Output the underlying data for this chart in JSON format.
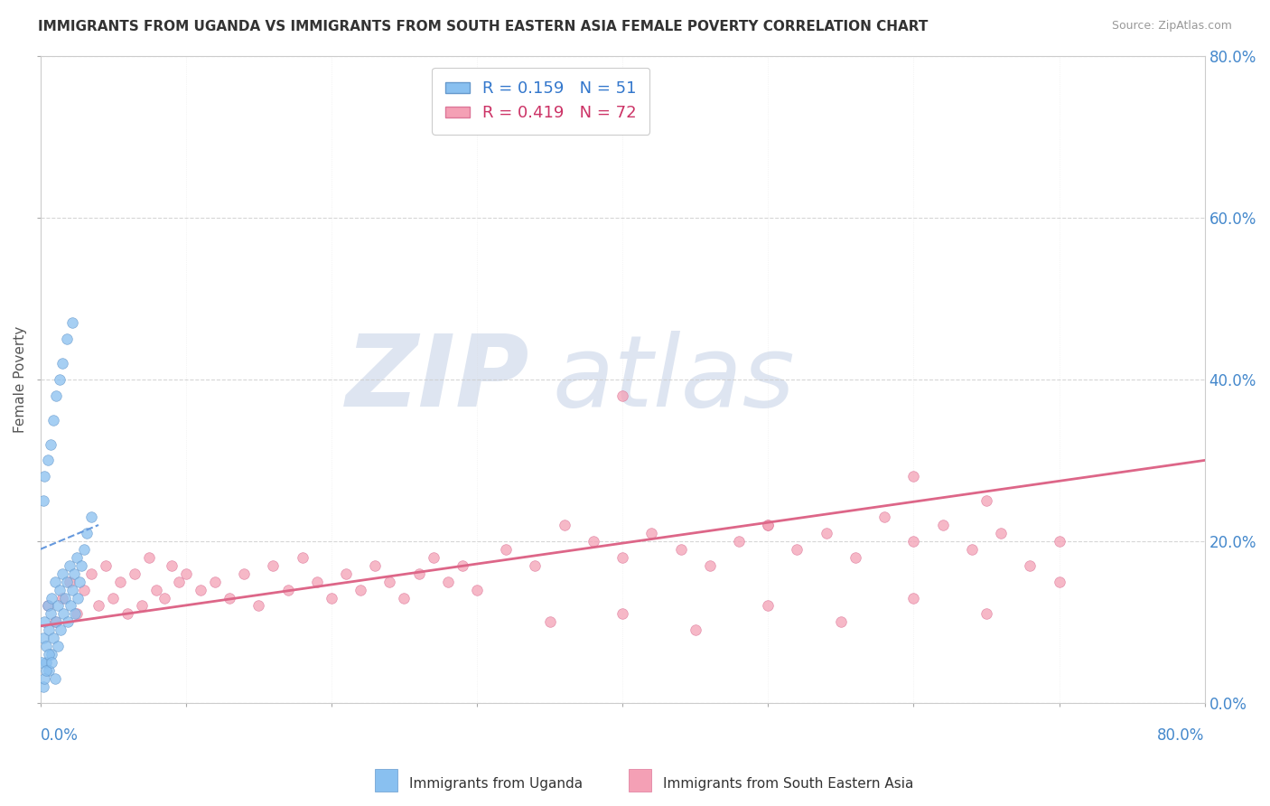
{
  "title": "IMMIGRANTS FROM UGANDA VS IMMIGRANTS FROM SOUTH EASTERN ASIA FEMALE POVERTY CORRELATION CHART",
  "source_text": "Source: ZipAtlas.com",
  "ylabel": "Female Poverty",
  "right_ytick_labels": [
    "0.0%",
    "20.0%",
    "40.0%",
    "60.0%",
    "80.0%"
  ],
  "right_ytick_values": [
    0.0,
    0.2,
    0.4,
    0.6,
    0.8
  ],
  "xlim": [
    0.0,
    0.8
  ],
  "ylim": [
    0.0,
    0.8
  ],
  "legend_entries": [
    {
      "label": "R = 0.159   N = 51",
      "color": "#aaccff"
    },
    {
      "label": "R = 0.419   N = 72",
      "color": "#ffaabb"
    }
  ],
  "series1_color": "#89c0f0",
  "series1_edge": "#6699cc",
  "series2_color": "#f4a0b5",
  "series2_edge": "#dd7799",
  "trendline_blue_color": "#6699dd",
  "trendline_blue_style": "--",
  "trendline_pink_color": "#dd6688",
  "trendline_pink_style": "-",
  "watermark_text1": "ZIP",
  "watermark_text2": "atlas",
  "watermark_color1": "#c8d4e8",
  "watermark_color2": "#c8d4e8",
  "Uganda_x": [
    0.002,
    0.003,
    0.004,
    0.005,
    0.006,
    0.007,
    0.008,
    0.009,
    0.01,
    0.011,
    0.012,
    0.013,
    0.014,
    0.015,
    0.016,
    0.017,
    0.018,
    0.019,
    0.02,
    0.021,
    0.022,
    0.023,
    0.024,
    0.025,
    0.026,
    0.027,
    0.028,
    0.03,
    0.032,
    0.035,
    0.002,
    0.003,
    0.005,
    0.007,
    0.009,
    0.011,
    0.013,
    0.015,
    0.018,
    0.022,
    0.004,
    0.006,
    0.008,
    0.01,
    0.012,
    0.002,
    0.003,
    0.001,
    0.004,
    0.006,
    0.008
  ],
  "Uganda_y": [
    0.08,
    0.1,
    0.07,
    0.12,
    0.09,
    0.11,
    0.13,
    0.08,
    0.15,
    0.1,
    0.12,
    0.14,
    0.09,
    0.16,
    0.11,
    0.13,
    0.15,
    0.1,
    0.17,
    0.12,
    0.14,
    0.16,
    0.11,
    0.18,
    0.13,
    0.15,
    0.17,
    0.19,
    0.21,
    0.23,
    0.25,
    0.28,
    0.3,
    0.32,
    0.35,
    0.38,
    0.4,
    0.42,
    0.45,
    0.47,
    0.05,
    0.04,
    0.06,
    0.03,
    0.07,
    0.02,
    0.03,
    0.05,
    0.04,
    0.06,
    0.05
  ],
  "SEAsia_x": [
    0.005,
    0.01,
    0.015,
    0.02,
    0.025,
    0.03,
    0.035,
    0.04,
    0.045,
    0.05,
    0.055,
    0.06,
    0.065,
    0.07,
    0.075,
    0.08,
    0.085,
    0.09,
    0.095,
    0.1,
    0.11,
    0.12,
    0.13,
    0.14,
    0.15,
    0.16,
    0.17,
    0.18,
    0.19,
    0.2,
    0.21,
    0.22,
    0.23,
    0.24,
    0.25,
    0.26,
    0.27,
    0.28,
    0.29,
    0.3,
    0.32,
    0.34,
    0.36,
    0.38,
    0.4,
    0.42,
    0.44,
    0.46,
    0.48,
    0.5,
    0.52,
    0.54,
    0.56,
    0.58,
    0.6,
    0.62,
    0.64,
    0.66,
    0.68,
    0.7,
    0.35,
    0.4,
    0.45,
    0.5,
    0.55,
    0.6,
    0.65,
    0.7,
    0.65,
    0.6,
    0.5,
    0.4
  ],
  "SEAsia_y": [
    0.12,
    0.1,
    0.13,
    0.15,
    0.11,
    0.14,
    0.16,
    0.12,
    0.17,
    0.13,
    0.15,
    0.11,
    0.16,
    0.12,
    0.18,
    0.14,
    0.13,
    0.17,
    0.15,
    0.16,
    0.14,
    0.15,
    0.13,
    0.16,
    0.12,
    0.17,
    0.14,
    0.18,
    0.15,
    0.13,
    0.16,
    0.14,
    0.17,
    0.15,
    0.13,
    0.16,
    0.18,
    0.15,
    0.17,
    0.14,
    0.19,
    0.17,
    0.22,
    0.2,
    0.18,
    0.21,
    0.19,
    0.17,
    0.2,
    0.22,
    0.19,
    0.21,
    0.18,
    0.23,
    0.2,
    0.22,
    0.19,
    0.21,
    0.17,
    0.2,
    0.1,
    0.11,
    0.09,
    0.12,
    0.1,
    0.13,
    0.11,
    0.15,
    0.25,
    0.28,
    0.22,
    0.38
  ],
  "Uganda_trend_x0": 0.0,
  "Uganda_trend_y0": 0.19,
  "Uganda_trend_x1": 0.04,
  "Uganda_trend_y1": 0.22,
  "SEAsia_trend_x0": 0.0,
  "SEAsia_trend_y0": 0.095,
  "SEAsia_trend_x1": 0.8,
  "SEAsia_trend_y1": 0.3
}
